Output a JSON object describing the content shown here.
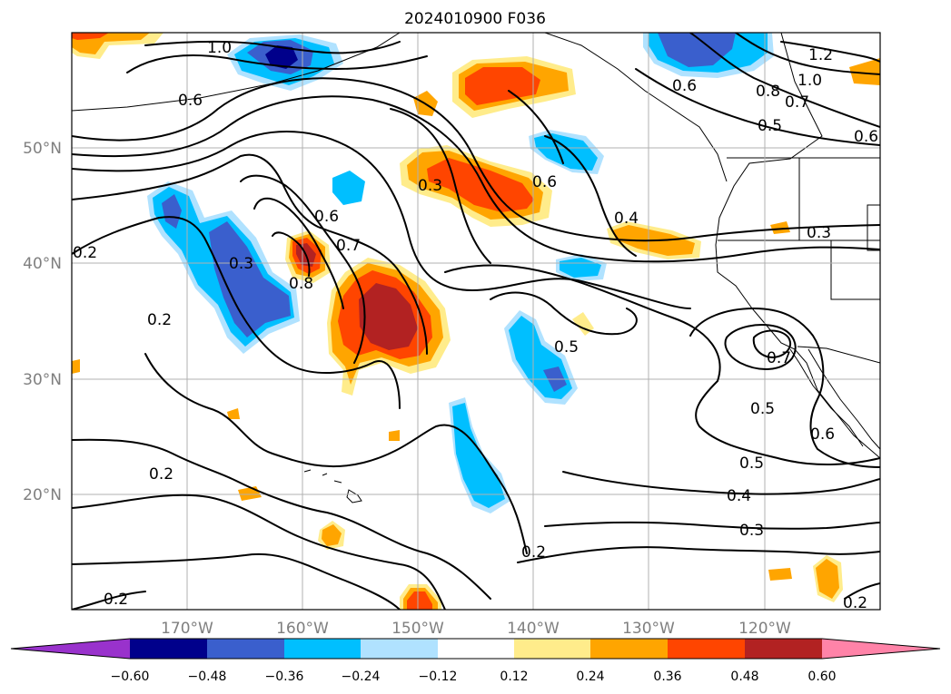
{
  "title": "2024010900 F036",
  "map": {
    "lon_ticks": [
      "170°W",
      "160°W",
      "150°W",
      "140°W",
      "130°W",
      "120°W"
    ],
    "lat_ticks": [
      "50°N",
      "40°N",
      "30°N",
      "20°N"
    ],
    "lon_range": [
      -180,
      -110
    ],
    "lat_range": [
      10,
      60
    ]
  },
  "colorbar": {
    "ticks": [
      "−0.60",
      "−0.48",
      "−0.36",
      "−0.24",
      "−0.12",
      "0.12",
      "0.24",
      "0.36",
      "0.48",
      "0.60"
    ],
    "colors": [
      "#9932cc",
      "#00008b",
      "#3a5fcd",
      "#00bfff",
      "#b0e2ff",
      "#ffffff",
      "#ffec8b",
      "#ffa500",
      "#ff4500",
      "#b22222",
      "#ff83a8"
    ]
  },
  "contour_labels": [
    "1.0",
    "0.6",
    "1.2",
    "1.0",
    "0.6",
    "0.8",
    "0.7",
    "0.5",
    "0.6",
    "0.3",
    "0.6",
    "0.4",
    "0.2",
    "0.3",
    "0.6",
    "0.7",
    "0.8",
    "0.2",
    "0.3",
    "0.5",
    "0.7",
    "0.5",
    "0.6",
    "0.2",
    "0.5",
    "0.4",
    "0.3",
    "0.2",
    "0.2",
    "0.2"
  ]
}
